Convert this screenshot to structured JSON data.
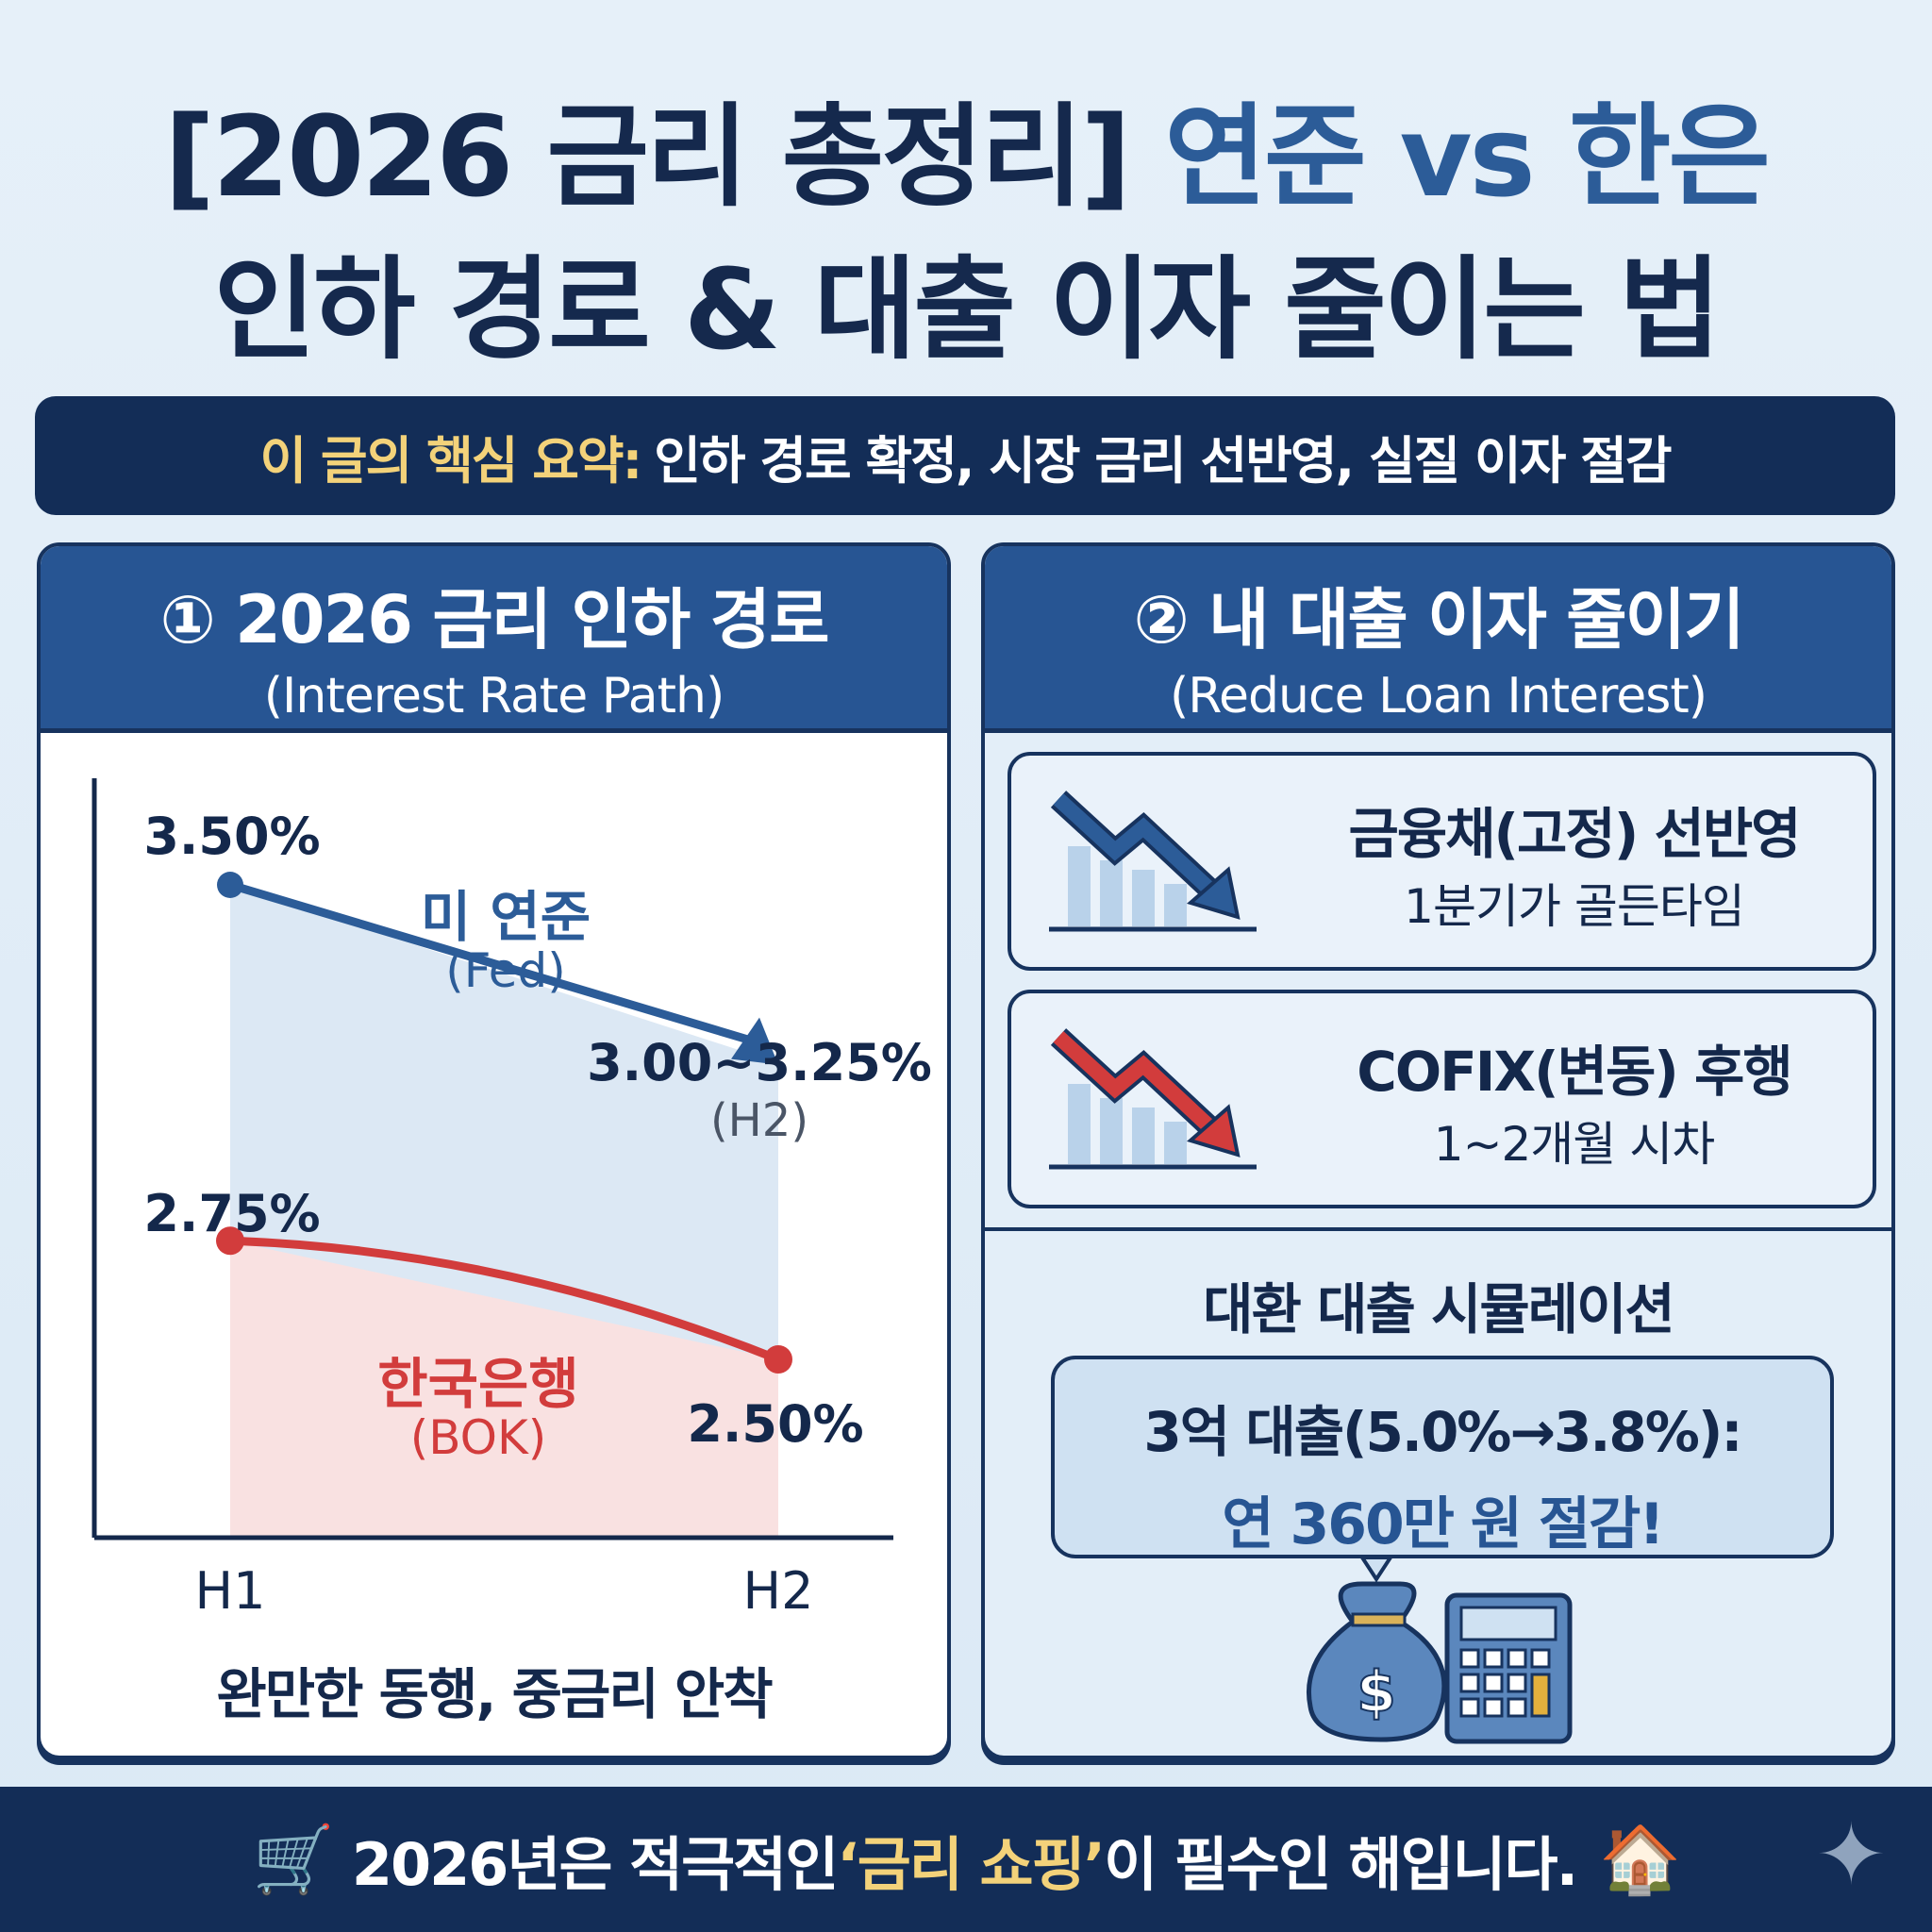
{
  "title": {
    "line1_a": "[2026 금리 총정리]",
    "line1_b": "연준 vs 한은",
    "line2": "인하 경로 & 대출 이자 줄이는 법"
  },
  "summary": {
    "label": "이 글의 핵심 요약:",
    "text": "인하 경로 확정, 시장 금리 선반영, 실질 이자 절감"
  },
  "left_panel": {
    "title": "① 2026 금리 인하 경로",
    "subtitle": "(Interest Rate Path)",
    "caption": "완만한 동행, 중금리 안착"
  },
  "chart_data": {
    "type": "line",
    "categories": [
      "H1",
      "H2"
    ],
    "ylim": [
      2.5,
      3.5
    ],
    "series": [
      {
        "name": "미 연준",
        "name_en": "(Fed)",
        "values": [
          3.5,
          3.125
        ],
        "labels": [
          "3.50%",
          "3.00~3.25%"
        ],
        "label_note": "(H2)",
        "color": "#2c5c98",
        "fill": "#dce8f4"
      },
      {
        "name": "한국은행",
        "name_en": "(BOK)",
        "values": [
          2.75,
          2.5
        ],
        "labels": [
          "2.75%",
          "2.50%"
        ],
        "color": "#d23c3c",
        "fill": "#f9e1e1"
      }
    ]
  },
  "right_panel": {
    "title": "② 내 대출 이자 줄이기",
    "subtitle": "(Reduce Loan Interest)",
    "cards": [
      {
        "title": "금융채(고정) 선반영",
        "desc": "1분기가 골든타임",
        "color": "#2c5c98"
      },
      {
        "title": "COFIX(변동) 후행",
        "desc": "1~2개월 시차",
        "color": "#d23c3c"
      }
    ],
    "simulation": {
      "title": "대환 대출 시뮬레이션",
      "line1": "3억 대출(5.0%→3.8%):",
      "line2": "연 360만 원 절감!"
    }
  },
  "footer": {
    "pre": "2026년은 적극적인 ",
    "highlight": "‘금리 쇼핑’",
    "post": "이 필수인 해입니다."
  }
}
